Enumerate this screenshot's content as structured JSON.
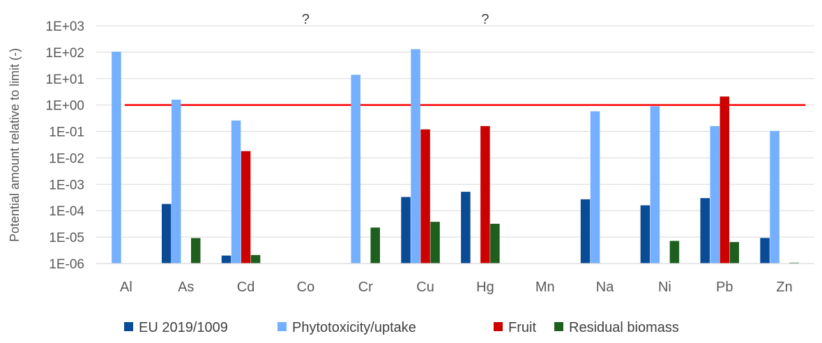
{
  "chart_data": {
    "type": "bar",
    "title": "",
    "xlabel": "",
    "ylabel": "Potential amount relative to limit (-)",
    "y_scale": "log10",
    "ylim": [
      1e-06,
      1000
    ],
    "y_ticks": [
      "1E-06",
      "1E-05",
      "1E-04",
      "1E-03",
      "1E-02",
      "1E-01",
      "1E+00",
      "1E+01",
      "1E+02",
      "1E+03"
    ],
    "grid": "horizontal",
    "legend_position": "bottom",
    "categories": [
      "Al",
      "As",
      "Cd",
      "Co",
      "Cr",
      "Cu",
      "Hg",
      "Mn",
      "Na",
      "Ni",
      "Pb",
      "Zn"
    ],
    "series": [
      {
        "name": "EU 2019/1009",
        "color": "#0a4b96",
        "values": [
          null,
          0.00018,
          2e-06,
          null,
          null,
          0.00033,
          0.00052,
          null,
          0.00027,
          0.00016,
          0.0003,
          9.3e-06
        ]
      },
      {
        "name": "Phytotoxicity/uptake",
        "color": "#74b0ff",
        "values": [
          105,
          1.6,
          0.26,
          null,
          14,
          130,
          null,
          null,
          0.58,
          0.9,
          0.16,
          0.105
        ]
      },
      {
        "name": "Fruit",
        "color": "#cc0000",
        "values": [
          null,
          null,
          0.018,
          null,
          null,
          0.12,
          0.16,
          null,
          null,
          null,
          2.1,
          null
        ]
      },
      {
        "name": "Residual biomass",
        "color": "#1e5f1e",
        "values": [
          null,
          9.2e-06,
          2.1e-06,
          null,
          2.3e-05,
          3.8e-05,
          3.2e-05,
          null,
          null,
          7.2e-06,
          6.5e-06,
          9.5e-07
        ]
      }
    ],
    "reference_line": {
      "value": 1,
      "color": "#ff0000"
    },
    "annotations": [
      {
        "text": "?",
        "category": "Co"
      },
      {
        "text": "?",
        "category": "Hg"
      }
    ]
  }
}
